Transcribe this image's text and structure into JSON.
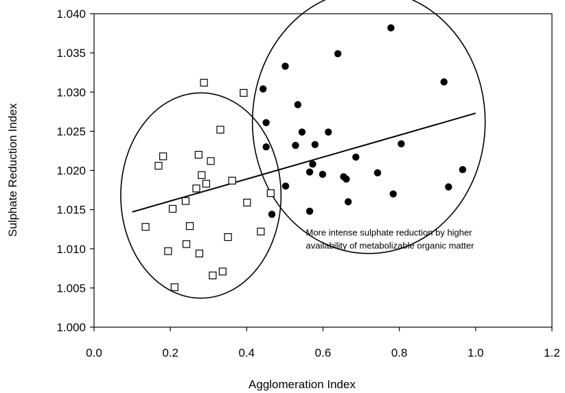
{
  "chart_data": {
    "type": "scatter",
    "title": "",
    "xlabel": "Agglomeration Index",
    "ylabel": "Sulphate Reduction Index",
    "xlim": [
      0.0,
      1.2
    ],
    "ylim": [
      1.0,
      1.04
    ],
    "x_ticks": [
      "0.0",
      "0.2",
      "0.4",
      "0.6",
      "0.8",
      "1.0",
      "1.2"
    ],
    "y_ticks": [
      "1.000",
      "1.005",
      "1.010",
      "1.015",
      "1.020",
      "1.025",
      "1.030",
      "1.035",
      "1.040"
    ],
    "grid": false,
    "series": [
      {
        "marker": "open-square",
        "points": [
          [
            0.288,
            1.0312
          ],
          [
            0.392,
            1.0299
          ],
          [
            0.331,
            1.0252
          ],
          [
            0.181,
            1.0218
          ],
          [
            0.274,
            1.022
          ],
          [
            0.169,
            1.0206
          ],
          [
            0.306,
            1.0212
          ],
          [
            0.282,
            1.0194
          ],
          [
            0.294,
            1.0183
          ],
          [
            0.362,
            1.0187
          ],
          [
            0.268,
            1.0177
          ],
          [
            0.463,
            1.0171
          ],
          [
            0.24,
            1.0161
          ],
          [
            0.401,
            1.0159
          ],
          [
            0.206,
            1.0151
          ],
          [
            0.135,
            1.0128
          ],
          [
            0.251,
            1.0129
          ],
          [
            0.437,
            1.0122
          ],
          [
            0.351,
            1.0115
          ],
          [
            0.242,
            1.0106
          ],
          [
            0.194,
            1.0097
          ],
          [
            0.276,
            1.0094
          ],
          [
            0.337,
            1.0071
          ],
          [
            0.311,
            1.0066
          ],
          [
            0.211,
            1.0051
          ]
        ]
      },
      {
        "marker": "filled-circle",
        "points": [
          [
            0.778,
            1.0382
          ],
          [
            0.639,
            1.0349
          ],
          [
            0.501,
            1.0333
          ],
          [
            0.917,
            1.0313
          ],
          [
            0.443,
            1.0304
          ],
          [
            0.534,
            1.0284
          ],
          [
            0.451,
            1.0261
          ],
          [
            0.545,
            1.0249
          ],
          [
            0.614,
            1.0249
          ],
          [
            0.579,
            1.0233
          ],
          [
            0.528,
            1.0232
          ],
          [
            0.451,
            1.023
          ],
          [
            0.805,
            1.0234
          ],
          [
            0.686,
            1.0217
          ],
          [
            0.573,
            1.0208
          ],
          [
            0.565,
            1.0198
          ],
          [
            0.599,
            1.0195
          ],
          [
            0.743,
            1.0197
          ],
          [
            0.966,
            1.0201
          ],
          [
            0.654,
            1.0192
          ],
          [
            0.661,
            1.0189
          ],
          [
            0.502,
            1.018
          ],
          [
            0.929,
            1.0179
          ],
          [
            0.784,
            1.017
          ],
          [
            0.666,
            1.016
          ],
          [
            0.466,
            1.0144
          ],
          [
            0.565,
            1.0148
          ]
        ]
      }
    ],
    "trend_line": {
      "from": [
        0.1,
        1.0147
      ],
      "to": [
        1.0,
        1.0273
      ]
    },
    "ellipses": [
      {
        "cx": 0.28,
        "cy": 1.0168,
        "rx": 0.21,
        "ry": 0.0131
      },
      {
        "cx": 0.72,
        "cy": 1.0262,
        "rx": 0.305,
        "ry": 0.0168
      }
    ],
    "annotation": {
      "lines": [
        "More intense sulphate reduction by higher",
        "availability of metabolizable organic matter"
      ],
      "anchor": [
        0.555,
        1.0117
      ]
    }
  }
}
